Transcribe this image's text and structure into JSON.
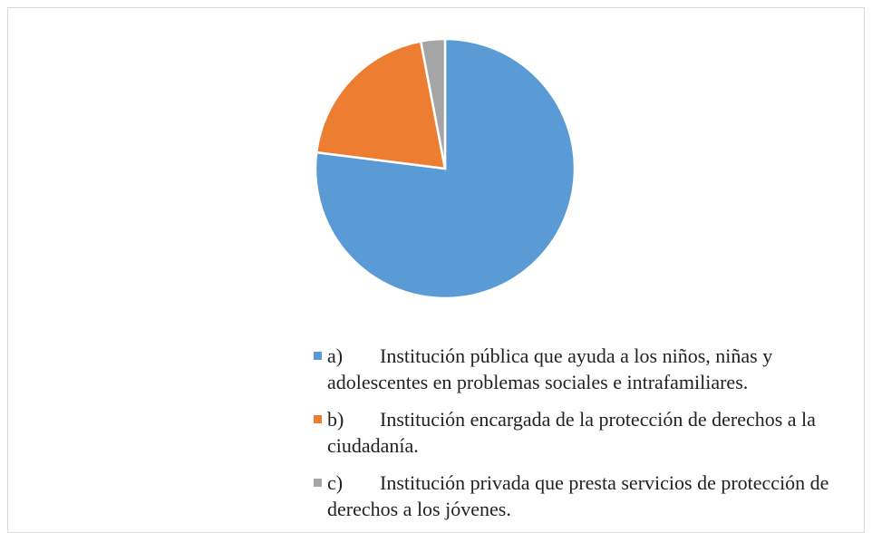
{
  "chart_data": {
    "type": "pie",
    "categories": [
      "a)\tInstitución pública que ayuda a los niños, niñas y adolescentes en problemas sociales e intrafamiliares.",
      "b)\tInstitución encargada de la protección de derechos a la ciudadanía.",
      "c)\tInstitución privada que presta servicios de protección de derechos a los jóvenes."
    ],
    "values": [
      77,
      20,
      3
    ],
    "colors": [
      "#5b9bd5",
      "#ed7d31",
      "#a5a5a5"
    ],
    "legend": "bottom"
  }
}
